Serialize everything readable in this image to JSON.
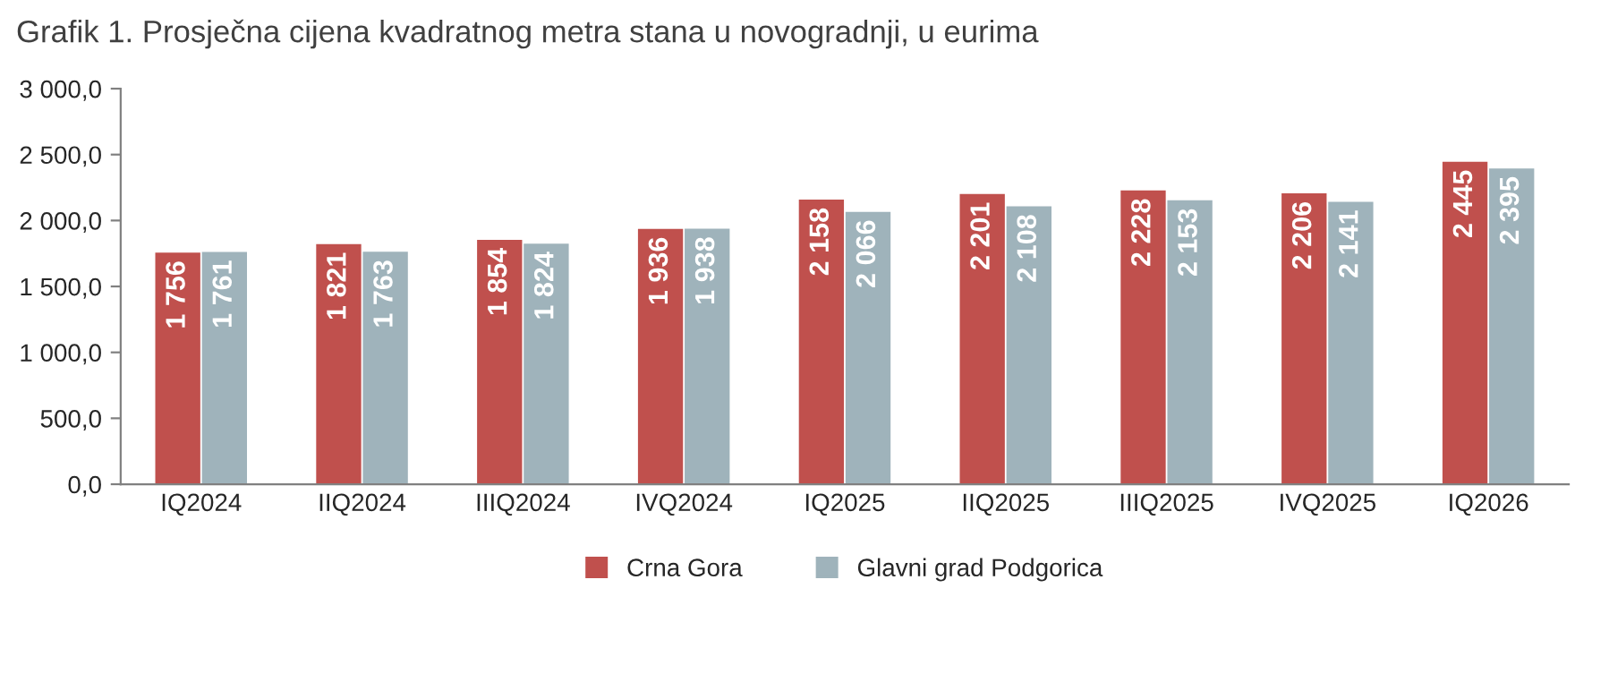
{
  "chart_data": {
    "type": "bar",
    "title": "Grafik 1. Prosječna cijena kvadratnog metra stana u novogradnji, u eurima",
    "categories": [
      "IQ2024",
      "IIQ2024",
      "IIIQ2024",
      "IVQ2024",
      "IQ2025",
      "IIQ2025",
      "IIIQ2025",
      "IVQ2025",
      "IQ2026"
    ],
    "series": [
      {
        "name": "Crna Gora",
        "color": "#c0504d",
        "values": [
          1756,
          1821,
          1854,
          1936,
          2158,
          2201,
          2228,
          2206,
          2445
        ],
        "value_labels": [
          "1 756",
          "1 821",
          "1 854",
          "1 936",
          "2 158",
          "2 201",
          "2 228",
          "2 206",
          "2 445"
        ]
      },
      {
        "name": "Glavni grad Podgorica",
        "color": "#9fb3bb",
        "values": [
          1761,
          1763,
          1824,
          1938,
          2066,
          2108,
          2153,
          2141,
          2395
        ],
        "value_labels": [
          "1 761",
          "1 763",
          "1 824",
          "1 938",
          "2 066",
          "2 108",
          "2 153",
          "2 141",
          "2 395"
        ]
      }
    ],
    "ylim": [
      0,
      3000
    ],
    "yticks": [
      {
        "value": 0,
        "label": "0,0"
      },
      {
        "value": 500,
        "label": "500,0"
      },
      {
        "value": 1000,
        "label": "1 000,0"
      },
      {
        "value": 1500,
        "label": "1 500,0"
      },
      {
        "value": 2000,
        "label": "2 000,0"
      },
      {
        "value": 2500,
        "label": "2 500,0"
      },
      {
        "value": 3000,
        "label": "3 000,0"
      }
    ],
    "grid": false,
    "legend": "bottom"
  }
}
